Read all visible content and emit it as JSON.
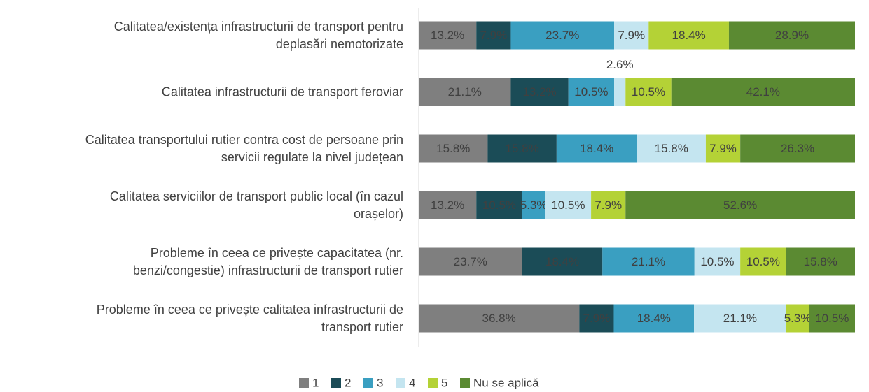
{
  "chart_data": {
    "type": "stacked_bar_horizontal",
    "categories": [
      "Calitatea/existența infrastructurii de transport pentru\ndeplasări nemotorizate",
      "Calitatea infrastructurii de transport feroviar",
      "Calitatea transportului rutier contra cost de persoane prin\nservicii regulate la nivel județean",
      "Calitatea serviciilor de transport public local (în cazul\norașelor)",
      "Probleme în ceea ce privește capacitatea (nr.\nbenzi/congestie) infrastructurii de transport rutier",
      "Probleme în ceea ce privește calitatea infrastructurii de\ntransport rutier"
    ],
    "xlim": [
      0,
      100
    ],
    "legend": "bottom",
    "series": [
      {
        "name": "1",
        "color": "#7f7f7f",
        "values": [
          13.2,
          21.1,
          15.8,
          13.2,
          23.7,
          36.8
        ],
        "value_labels": [
          "13.2%",
          "21.1%",
          "15.8%",
          "13.2%",
          "23.7%",
          "36.8%"
        ]
      },
      {
        "name": "2",
        "color": "#1b4c57",
        "values": [
          7.9,
          13.2,
          15.8,
          10.5,
          18.4,
          7.9
        ],
        "value_labels": [
          "7.9%",
          "13.2%",
          "15.8%",
          "10.5%",
          "18.4%",
          "7.9%"
        ]
      },
      {
        "name": "3",
        "color": "#3a9fc1",
        "values": [
          23.7,
          10.5,
          18.4,
          5.3,
          21.1,
          18.4
        ],
        "value_labels": [
          "23.7%",
          "10.5%",
          "18.4%",
          "5.3%",
          "21.1%",
          "18.4%"
        ]
      },
      {
        "name": "4",
        "color": "#c4e5f0",
        "values": [
          7.9,
          2.6,
          15.8,
          10.5,
          10.5,
          21.1
        ],
        "value_labels": [
          "7.9%",
          "2.6%",
          "15.8%",
          "10.5%",
          "10.5%",
          "21.1%"
        ]
      },
      {
        "name": "5",
        "color": "#b4d236",
        "values": [
          18.4,
          10.5,
          7.9,
          7.9,
          10.5,
          5.3
        ],
        "value_labels": [
          "18.4%",
          "10.5%",
          "7.9%",
          "7.9%",
          "10.5%",
          "5.3%"
        ]
      },
      {
        "name": "Nu se aplică",
        "color": "#5b8a32",
        "values": [
          28.9,
          42.1,
          26.3,
          52.6,
          15.8,
          10.5
        ],
        "value_labels": [
          "28.9%",
          "42.1%",
          "26.3%",
          "52.6%",
          "15.8%",
          "10.5%"
        ]
      }
    ]
  }
}
